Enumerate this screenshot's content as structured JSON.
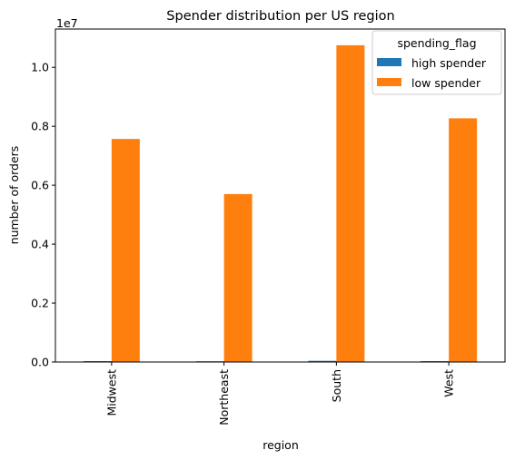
{
  "chart_data": {
    "type": "bar",
    "title": "Spender distribution per US region",
    "xlabel": "region",
    "ylabel": "number of orders",
    "y_scale_label": "1e7",
    "categories": [
      "Midwest",
      "Northeast",
      "South",
      "West"
    ],
    "ylim": [
      0,
      11300000
    ],
    "yticks": [
      0,
      2000000,
      4000000,
      6000000,
      8000000,
      10000000
    ],
    "ytick_labels": [
      "0.0",
      "0.2",
      "0.4",
      "0.6",
      "0.8",
      "1.0"
    ],
    "grid": false,
    "legend_position": "top-right",
    "legend_title": "spending_flag",
    "series": [
      {
        "name": "high spender",
        "color": "#1f77b4",
        "values": [
          30000,
          25000,
          40000,
          30000
        ]
      },
      {
        "name": "low spender",
        "color": "#ff7f0e",
        "values": [
          7570000,
          5700000,
          10750000,
          8270000
        ]
      }
    ]
  }
}
